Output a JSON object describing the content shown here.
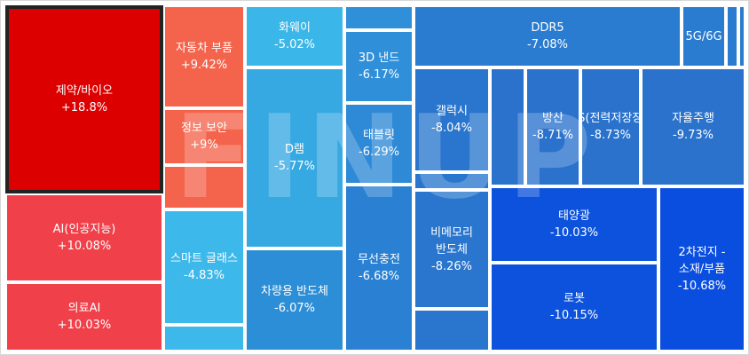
{
  "watermark": "FINUP",
  "chart_data": {
    "type": "treemap",
    "unit": "%",
    "items": [
      {
        "label": "제약/바이오",
        "value": 18.8,
        "display": "+18.8%",
        "color": "#dc0000",
        "selected": true
      },
      {
        "label": "AI(인공지능)",
        "value": 10.08,
        "display": "+10.08%",
        "color": "#f0404a"
      },
      {
        "label": "의료AI",
        "value": 10.03,
        "display": "+10.03%",
        "color": "#f0404a"
      },
      {
        "label": "자동차 부품",
        "value": 9.42,
        "display": "+9.42%",
        "color": "#f4644c"
      },
      {
        "label": "정보 보안",
        "value": 9,
        "display": "+9%",
        "color": "#f4644c"
      },
      {
        "label": "",
        "value": null,
        "display": "",
        "color": "#f4644c"
      },
      {
        "label": "스마트 글래스",
        "value": -4.83,
        "display": "-4.83%",
        "color": "#3cb8ea"
      },
      {
        "label": "",
        "value": null,
        "display": "",
        "color": "#3cb8ea"
      },
      {
        "label": "화웨이",
        "value": -5.02,
        "display": "-5.02%",
        "color": "#3ab6e8"
      },
      {
        "label": "D램",
        "value": -5.77,
        "display": "-5.77%",
        "color": "#36a8e2"
      },
      {
        "label": "차량용 반도체",
        "value": -6.07,
        "display": "-6.07%",
        "color": "#2c8ed6"
      },
      {
        "label": "",
        "value": null,
        "display": "",
        "color": "#2f8fd8"
      },
      {
        "label": "3D 낸드",
        "value": -6.17,
        "display": "-6.17%",
        "color": "#2f8fd8"
      },
      {
        "label": "태블릿",
        "value": -6.29,
        "display": "-6.29%",
        "color": "#2e8ad6"
      },
      {
        "label": "",
        "value": null,
        "display": "",
        "color": "#2e8ad6"
      },
      {
        "label": "무선충전",
        "value": -6.68,
        "display": "-6.68%",
        "color": "#2a80d2"
      },
      {
        "label": "DDR5",
        "value": -7.08,
        "display": "-7.08%",
        "color": "#2a7cd0"
      },
      {
        "label": "5G/6G",
        "value": null,
        "display": "",
        "color": "#2a7cd0"
      },
      {
        "label": "",
        "value": null,
        "display": "",
        "color": "#2a7cd0"
      },
      {
        "label": "",
        "value": null,
        "display": "",
        "color": "#2a7cd0"
      },
      {
        "label": "갤럭시",
        "value": -8.04,
        "display": "-8.04%",
        "color": "#2a76ce"
      },
      {
        "label": "",
        "value": null,
        "display": "",
        "color": "#2a76ce"
      },
      {
        "label": "비메모리 반도체",
        "value": -8.26,
        "display": "-8.26%",
        "color": "#2a76ce"
      },
      {
        "label": "",
        "value": null,
        "display": "",
        "color": "#2a76ce"
      },
      {
        "label": "",
        "value": null,
        "display": "",
        "color": "#2a72cc"
      },
      {
        "label": "방산",
        "value": -8.71,
        "display": "-8.71%",
        "color": "#2a72cc"
      },
      {
        "label": "ESS(전력저장장치)",
        "value": -8.73,
        "display": "-8.73%",
        "color": "#2a72cc"
      },
      {
        "label": "자율주행",
        "value": -9.73,
        "display": "-9.73%",
        "color": "#2a72cc"
      },
      {
        "label": "태양광",
        "value": -10.03,
        "display": "-10.03%",
        "color": "#0c52dc"
      },
      {
        "label": "로봇",
        "value": -10.15,
        "display": "-10.15%",
        "color": "#0c52dc"
      },
      {
        "label": "2차전지 - 소재/부품",
        "value": -10.68,
        "display": "-10.68%",
        "color": "#0a4ee0"
      }
    ]
  }
}
